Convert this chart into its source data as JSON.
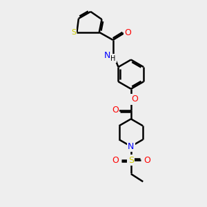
{
  "background_color": "#eeeeee",
  "bond_width": 1.8,
  "atom_colors": {
    "S": "#cccc00",
    "N": "#0000ff",
    "O": "#ff0000"
  },
  "figsize": [
    3.0,
    3.0
  ],
  "dpi": 100
}
